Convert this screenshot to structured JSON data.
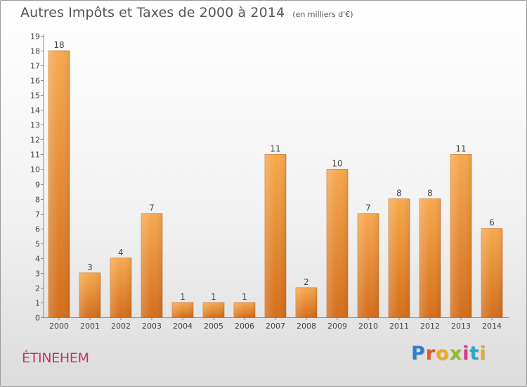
{
  "header": {
    "title": "Autres Impôts et Taxes de 2000 à 2014",
    "subtitle": "(en milliers d'€)"
  },
  "footer": {
    "commune": "ÉTINEHEM",
    "brand_letters": [
      {
        "ch": "P",
        "color": "#2f7fd1"
      },
      {
        "ch": "r",
        "color": "#e8542a"
      },
      {
        "ch": "o",
        "color": "#f2a81d"
      },
      {
        "ch": "x",
        "color": "#8bbf2a"
      },
      {
        "ch": "i",
        "color": "#d43e86"
      },
      {
        "ch": "t",
        "color": "#2aa7c9"
      },
      {
        "ch": "i",
        "color": "#f2a81d"
      }
    ]
  },
  "chart_data": {
    "type": "bar",
    "title": "Autres Impôts et Taxes de 2000 à 2014",
    "subtitle": "(en milliers d'€)",
    "categories": [
      "2000",
      "2001",
      "2002",
      "2003",
      "2004",
      "2005",
      "2006",
      "2007",
      "2008",
      "2009",
      "2010",
      "2011",
      "2012",
      "2013",
      "2014"
    ],
    "values": [
      18,
      3,
      4,
      7,
      1,
      1,
      1,
      11,
      2,
      10,
      7,
      8,
      8,
      11,
      6
    ],
    "y_ticks": [
      "0",
      "1",
      "2",
      "3",
      "4",
      "5",
      "6",
      "7",
      "8",
      "9",
      "10",
      "11",
      "12",
      "13",
      "14",
      "15",
      "16",
      "17",
      "18",
      "19"
    ],
    "ylim": [
      0,
      19
    ],
    "grid": false,
    "bar_color_top": "#f7a94f",
    "bar_color_bottom": "#d46e1c"
  }
}
